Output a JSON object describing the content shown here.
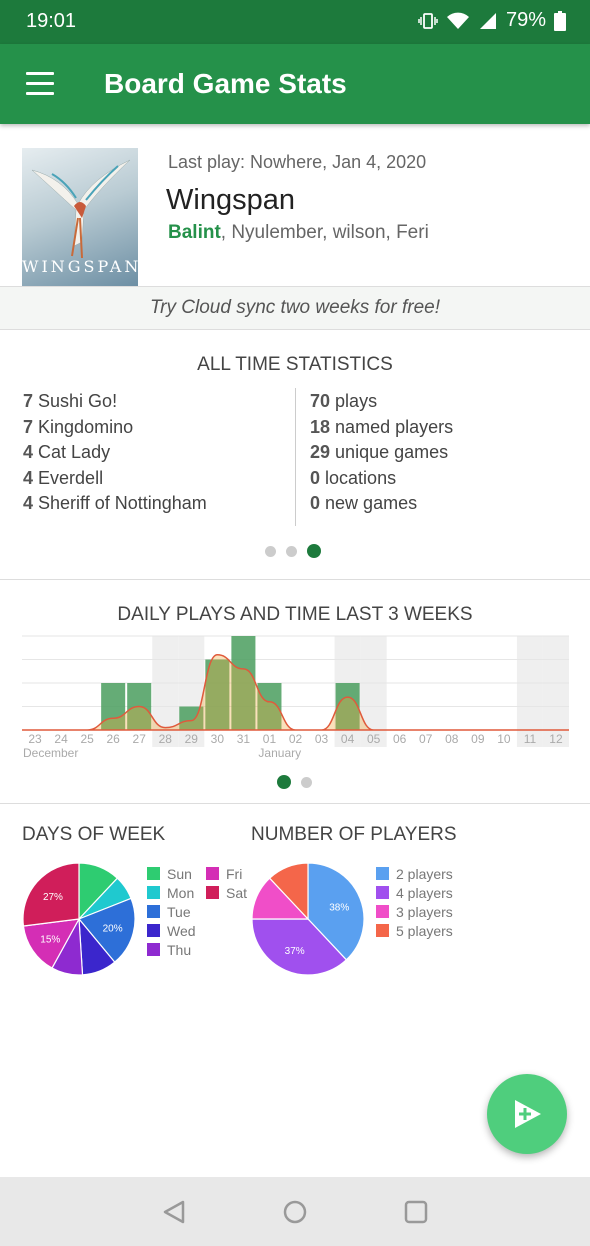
{
  "status_bar": {
    "time": "19:01",
    "battery": "79%"
  },
  "app_bar": {
    "title": "Board Game Stats",
    "menu_icon": "hamburger-menu-icon"
  },
  "last_play": {
    "meta": "Last play: Nowhere, Jan 4, 2020",
    "game": "Wingspan",
    "cover_text": "WINGSPAN",
    "winner": "Balint",
    "other_players": ", Nyulember, wilson, Feri"
  },
  "promo": {
    "text": "Try Cloud sync two weeks for free!"
  },
  "all_time": {
    "title": "ALL TIME STATISTICS",
    "top_games": [
      {
        "count": "7",
        "name": "Sushi Go!"
      },
      {
        "count": "7",
        "name": "Kingdomino"
      },
      {
        "count": "4",
        "name": "Cat Lady"
      },
      {
        "count": "4",
        "name": "Everdell"
      },
      {
        "count": "4",
        "name": "Sheriff of Nottingham"
      }
    ],
    "totals": [
      {
        "count": "70",
        "label": "plays"
      },
      {
        "count": "18",
        "label": "named players"
      },
      {
        "count": "29",
        "label": "unique games"
      },
      {
        "count": "0",
        "label": "locations"
      },
      {
        "count": "0",
        "label": "new games"
      }
    ],
    "pager": {
      "pages": 3,
      "active": 3
    }
  },
  "daily": {
    "title": "DAILY PLAYS AND TIME LAST 3 WEEKS",
    "month_labels": [
      "December",
      "January"
    ],
    "pager": {
      "pages": 2,
      "active": 1
    }
  },
  "days_of_week": {
    "title": "DAYS OF WEEK",
    "legend_col1": [
      "Sun",
      "Mon",
      "Tue",
      "Wed",
      "Thu"
    ],
    "legend_col2": [
      "Fri",
      "Sat"
    ],
    "slice_labels": [
      "27%",
      "15%",
      "20%"
    ]
  },
  "number_of_players": {
    "title": "NUMBER OF PLAYERS",
    "legend": [
      "2 players",
      "4 players",
      "3 players",
      "5 players"
    ],
    "slice_labels": [
      "38%",
      "37%"
    ]
  },
  "chart_data": [
    {
      "type": "bar",
      "title": "DAILY PLAYS AND TIME LAST 3 WEEKS",
      "categories": [
        "23",
        "24",
        "25",
        "26",
        "27",
        "28",
        "29",
        "30",
        "31",
        "01",
        "02",
        "03",
        "04",
        "05",
        "06",
        "07",
        "08",
        "09",
        "10",
        "11",
        "12"
      ],
      "weekend_categories": [
        "28",
        "29",
        "04",
        "05",
        "11",
        "12"
      ],
      "series": [
        {
          "name": "plays",
          "values": [
            0,
            0,
            0,
            2,
            2,
            0,
            1,
            3,
            4,
            2,
            0,
            0,
            2,
            0,
            0,
            0,
            0,
            0,
            0,
            0,
            0
          ],
          "color": "#4a9d5e"
        },
        {
          "name": "time",
          "type": "area",
          "values": [
            0,
            0,
            0,
            0.5,
            1,
            0.1,
            0.4,
            3.2,
            2.6,
            1.2,
            0,
            0,
            1.4,
            0,
            0,
            0,
            0,
            0,
            0,
            0,
            0
          ],
          "color": "#e05a3c"
        }
      ],
      "ylim": [
        0,
        4
      ],
      "grid": true
    },
    {
      "type": "pie",
      "title": "DAYS OF WEEK",
      "categories": [
        "Sun",
        "Mon",
        "Tue",
        "Wed",
        "Thu",
        "Fri",
        "Sat"
      ],
      "values": [
        12,
        7,
        20,
        10,
        9,
        15,
        27
      ],
      "colors": [
        "#2ecc71",
        "#1fc9cf",
        "#2d6fd8",
        "#3b26cc",
        "#8e2ad0",
        "#d42eb5",
        "#d01e5a"
      ],
      "labeled": {
        "Sat": "27%",
        "Fri": "15%",
        "Tue": "20%"
      }
    },
    {
      "type": "pie",
      "title": "NUMBER OF PLAYERS",
      "categories": [
        "2 players",
        "4 players",
        "3 players",
        "5 players"
      ],
      "values": [
        38,
        37,
        13,
        12
      ],
      "colors": [
        "#5aa0f0",
        "#a050ee",
        "#f04ec8",
        "#f4664a"
      ],
      "labeled": {
        "2 players": "38%",
        "4 players": "37%"
      }
    }
  ]
}
